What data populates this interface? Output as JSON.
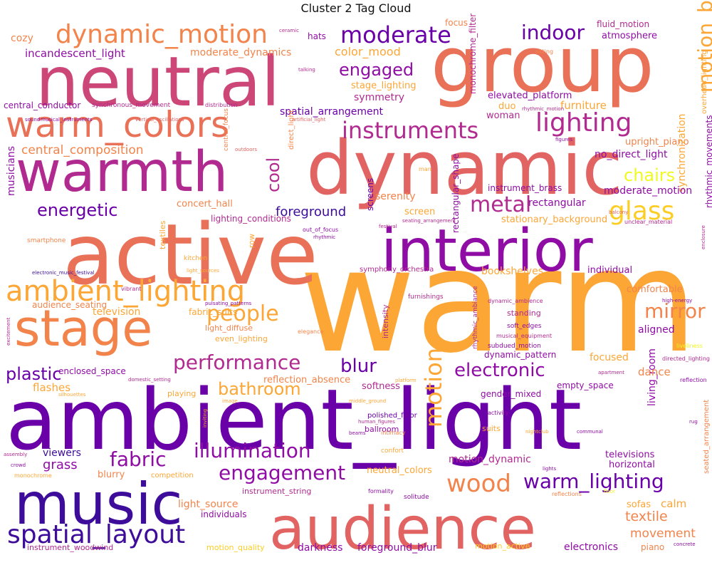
{
  "chart_data": {
    "type": "wordcloud",
    "title": "Cluster 2 Tag Cloud",
    "colormap": "plasma",
    "palette": {
      "deep_purple": "#3d0c9a",
      "purple": "#6a00a8",
      "violet": "#8f0da4",
      "magenta": "#b12a90",
      "rose": "#cc4778",
      "coral": "#e16462",
      "salmon": "#e97158",
      "orange": "#f2844b",
      "amber": "#fca636",
      "gold": "#fcce25",
      "yellow": "#f0f921"
    },
    "words": [
      {
        "text": "warm",
        "color": "amber"
      },
      {
        "text": "ambient_light",
        "color": "purple"
      },
      {
        "text": "active",
        "color": "salmon"
      },
      {
        "text": "dynamic",
        "color": "coral"
      },
      {
        "text": "group",
        "color": "salmon"
      },
      {
        "text": "neutral",
        "color": "rose"
      },
      {
        "text": "interior",
        "color": "violet"
      },
      {
        "text": "warmth",
        "color": "magenta"
      },
      {
        "text": "audience",
        "color": "coral"
      },
      {
        "text": "music",
        "color": "deep_purple"
      },
      {
        "text": "stage",
        "color": "orange"
      },
      {
        "text": "warm_colors",
        "color": "salmon"
      },
      {
        "text": "dynamic_motion",
        "color": "orange"
      },
      {
        "text": "ambient_lighting",
        "color": "amber"
      },
      {
        "text": "spatial_layout",
        "color": "deep_purple"
      },
      {
        "text": "moderate",
        "color": "purple"
      },
      {
        "text": "lighting",
        "color": "magenta"
      },
      {
        "text": "instruments",
        "color": "magenta"
      },
      {
        "text": "people",
        "color": "amber"
      },
      {
        "text": "performance",
        "color": "magenta"
      },
      {
        "text": "engagement",
        "color": "violet"
      },
      {
        "text": "illumination",
        "color": "violet"
      },
      {
        "text": "warm_lighting",
        "color": "purple"
      },
      {
        "text": "electronic",
        "color": "violet"
      },
      {
        "text": "glass",
        "color": "gold"
      },
      {
        "text": "metal",
        "color": "magenta"
      },
      {
        "text": "mirror",
        "color": "orange"
      },
      {
        "text": "wood",
        "color": "orange"
      },
      {
        "text": "motion",
        "color": "amber"
      },
      {
        "text": "motion_blur",
        "color": "amber"
      },
      {
        "text": "indoor",
        "color": "purple"
      },
      {
        "text": "engaged",
        "color": "violet"
      },
      {
        "text": "energetic",
        "color": "purple"
      },
      {
        "text": "cool",
        "color": "magenta"
      },
      {
        "text": "plastic",
        "color": "purple"
      },
      {
        "text": "bathroom",
        "color": "amber"
      },
      {
        "text": "fabric",
        "color": "violet"
      },
      {
        "text": "blur",
        "color": "purple"
      },
      {
        "text": "chairs",
        "color": "yellow"
      },
      {
        "text": "foreground",
        "color": "deep_purple"
      },
      {
        "text": "central_composition",
        "color": "orange"
      },
      {
        "text": "incandescent_light",
        "color": "violet"
      },
      {
        "text": "moderate_dynamics",
        "color": "orange"
      },
      {
        "text": "color_mood",
        "color": "amber"
      },
      {
        "text": "stage_lighting",
        "color": "amber"
      },
      {
        "text": "symmetry",
        "color": "magenta"
      },
      {
        "text": "spatial_arrangement",
        "color": "purple"
      },
      {
        "text": "elevated_platform",
        "color": "violet"
      },
      {
        "text": "furniture",
        "color": "amber"
      },
      {
        "text": "woman",
        "color": "magenta"
      },
      {
        "text": "no_direct_light",
        "color": "violet"
      },
      {
        "text": "upright_piano",
        "color": "orange"
      },
      {
        "text": "monochrome_filter",
        "color": "magenta"
      },
      {
        "text": "duo",
        "color": "amber"
      },
      {
        "text": "synchronization",
        "color": "amber"
      },
      {
        "text": "overhead_lighting",
        "color": "amber"
      },
      {
        "text": "fluid_motion",
        "color": "magenta"
      },
      {
        "text": "atmosphere",
        "color": "violet"
      },
      {
        "text": "focus",
        "color": "orange"
      },
      {
        "text": "hats",
        "color": "violet"
      },
      {
        "text": "cozy",
        "color": "orange"
      },
      {
        "text": "ceramic",
        "color": "magenta"
      },
      {
        "text": "sitting",
        "color": "orange"
      },
      {
        "text": "talking",
        "color": "magenta"
      },
      {
        "text": "central_conductor",
        "color": "violet"
      },
      {
        "text": "synchronous_movement",
        "color": "magenta"
      },
      {
        "text": "distribution",
        "color": "magenta"
      },
      {
        "text": "rhythmic_motion",
        "color": "magenta"
      },
      {
        "text": "sound",
        "color": "violet"
      },
      {
        "text": "musical_instruments",
        "color": "violet"
      },
      {
        "text": "vertical_oscillations",
        "color": "coral"
      },
      {
        "text": "artificial_light",
        "color": "coral"
      },
      {
        "text": "figures",
        "color": "violet"
      },
      {
        "text": "outdoors",
        "color": "coral"
      },
      {
        "text": "central_focus",
        "color": "orange"
      },
      {
        "text": "direct_light",
        "color": "orange"
      },
      {
        "text": "man",
        "color": "amber"
      },
      {
        "text": "serenity",
        "color": "orange"
      },
      {
        "text": "instrument_brass",
        "color": "violet"
      },
      {
        "text": "moderate_motion",
        "color": "violet"
      },
      {
        "text": "rectangular",
        "color": "violet"
      },
      {
        "text": "stationary_background",
        "color": "amber"
      },
      {
        "text": "screen",
        "color": "amber"
      },
      {
        "text": "musicians",
        "color": "violet"
      },
      {
        "text": "concert_hall",
        "color": "orange"
      },
      {
        "text": "lighting_conditions",
        "color": "magenta"
      },
      {
        "text": "out_of_focus",
        "color": "violet"
      },
      {
        "text": "rhythmic",
        "color": "violet"
      },
      {
        "text": "festival",
        "color": "magenta"
      },
      {
        "text": "seating_arrangement",
        "color": "magenta"
      },
      {
        "text": "balcony",
        "color": "coral"
      },
      {
        "text": "unclear_material",
        "color": "magenta"
      },
      {
        "text": "rhythmic_movements",
        "color": "violet"
      },
      {
        "text": "smartphone",
        "color": "orange"
      },
      {
        "text": "kitchen",
        "color": "amber"
      },
      {
        "text": "textiles",
        "color": "amber"
      },
      {
        "text": "row",
        "color": "amber"
      },
      {
        "text": "screens",
        "color": "purple"
      },
      {
        "text": "rectangular_shape",
        "color": "violet"
      },
      {
        "text": "bookshelves",
        "color": "amber"
      },
      {
        "text": "individual",
        "color": "violet"
      },
      {
        "text": "enclosure",
        "color": "magenta"
      },
      {
        "text": "electronic_music_festival",
        "color": "deep_purple"
      },
      {
        "text": "light_sources",
        "color": "amber"
      },
      {
        "text": "symphony_orchestra",
        "color": "magenta"
      },
      {
        "text": "vibrant",
        "color": "magenta"
      },
      {
        "text": "furnishings",
        "color": "magenta"
      },
      {
        "text": "comfortable",
        "color": "orange"
      },
      {
        "text": "high-energy",
        "color": "violet"
      },
      {
        "text": "audience_seating",
        "color": "orange"
      },
      {
        "text": "television",
        "color": "amber"
      },
      {
        "text": "fabric_suits",
        "color": "amber"
      },
      {
        "text": "pulsating_patterns",
        "color": "violet"
      },
      {
        "text": "dynamic_ambience",
        "color": "magenta"
      },
      {
        "text": "rhythmic_ambiance",
        "color": "magenta"
      },
      {
        "text": "standing",
        "color": "magenta"
      },
      {
        "text": "soft_edges",
        "color": "violet"
      },
      {
        "text": "musical_equipment",
        "color": "magenta"
      },
      {
        "text": "aligned",
        "color": "violet"
      },
      {
        "text": "liveliness",
        "color": "yellow"
      },
      {
        "text": "directed_lighting",
        "color": "magenta"
      },
      {
        "text": "excitement",
        "color": "magenta"
      },
      {
        "text": "elegance",
        "color": "orange"
      },
      {
        "text": "light_diffuse",
        "color": "orange"
      },
      {
        "text": "even_lighting",
        "color": "amber"
      },
      {
        "text": "intensity",
        "color": "magenta"
      },
      {
        "text": "subdued_motion",
        "color": "violet"
      },
      {
        "text": "dynamic_pattern",
        "color": "violet"
      },
      {
        "text": "focused",
        "color": "amber"
      },
      {
        "text": "living_room",
        "color": "violet"
      },
      {
        "text": "apartment",
        "color": "magenta"
      },
      {
        "text": "reflection",
        "color": "violet"
      },
      {
        "text": "enclosed_space",
        "color": "violet"
      },
      {
        "text": "reflection_absence",
        "color": "orange"
      },
      {
        "text": "dance",
        "color": "orange"
      },
      {
        "text": "flashes",
        "color": "amber"
      },
      {
        "text": "domestic_setting",
        "color": "magenta"
      },
      {
        "text": "softness",
        "color": "magenta"
      },
      {
        "text": "empty_space",
        "color": "violet"
      },
      {
        "text": "silhouettes",
        "color": "amber"
      },
      {
        "text": "platform",
        "color": "amber"
      },
      {
        "text": "middle_ground",
        "color": "amber"
      },
      {
        "text": "gender_mixed",
        "color": "violet"
      },
      {
        "text": "playing",
        "color": "amber"
      },
      {
        "text": "image",
        "color": "amber"
      },
      {
        "text": "human_figures",
        "color": "magenta"
      },
      {
        "text": "inviting",
        "color": "amber"
      },
      {
        "text": "activity",
        "color": "violet"
      },
      {
        "text": "polished_floor",
        "color": "purple"
      },
      {
        "text": "ballroom",
        "color": "violet"
      },
      {
        "text": "nightclub",
        "color": "amber"
      },
      {
        "text": "beams",
        "color": "violet"
      },
      {
        "text": "intimacy",
        "color": "orange"
      },
      {
        "text": "suits",
        "color": "amber"
      },
      {
        "text": "communal",
        "color": "violet"
      },
      {
        "text": "seated_arrangement",
        "color": "orange"
      },
      {
        "text": "rug",
        "color": "violet"
      },
      {
        "text": "viewers",
        "color": "deep_purple"
      },
      {
        "text": "grass",
        "color": "violet"
      },
      {
        "text": "confort",
        "color": "amber"
      },
      {
        "text": "motion_dynamic",
        "color": "magenta"
      },
      {
        "text": "televisions",
        "color": "violet"
      },
      {
        "text": "horizontal",
        "color": "violet"
      },
      {
        "text": "assembly",
        "color": "magenta"
      },
      {
        "text": "crowd",
        "color": "violet"
      },
      {
        "text": "monochrome",
        "color": "amber"
      },
      {
        "text": "blurry",
        "color": "orange"
      },
      {
        "text": "competition",
        "color": "amber"
      },
      {
        "text": "neutral_colors",
        "color": "amber"
      },
      {
        "text": "lights",
        "color": "violet"
      },
      {
        "text": "instrument_string",
        "color": "magenta"
      },
      {
        "text": "formality",
        "color": "violet"
      },
      {
        "text": "solitude",
        "color": "violet"
      },
      {
        "text": "reflections",
        "color": "orange"
      },
      {
        "text": "floor",
        "color": "yellow"
      },
      {
        "text": "light_source",
        "color": "orange"
      },
      {
        "text": "individuals",
        "color": "violet"
      },
      {
        "text": "sofas",
        "color": "amber"
      },
      {
        "text": "calm",
        "color": "amber"
      },
      {
        "text": "textile",
        "color": "orange"
      },
      {
        "text": "movement",
        "color": "orange"
      },
      {
        "text": "instrument_woodwind",
        "color": "magenta"
      },
      {
        "text": "motion_quality",
        "color": "gold"
      },
      {
        "text": "darkness",
        "color": "violet"
      },
      {
        "text": "foreground_blur",
        "color": "violet"
      },
      {
        "text": "motion_active",
        "color": "gold"
      },
      {
        "text": "electronics",
        "color": "violet"
      },
      {
        "text": "piano",
        "color": "orange"
      },
      {
        "text": "concrete",
        "color": "violet"
      }
    ]
  }
}
